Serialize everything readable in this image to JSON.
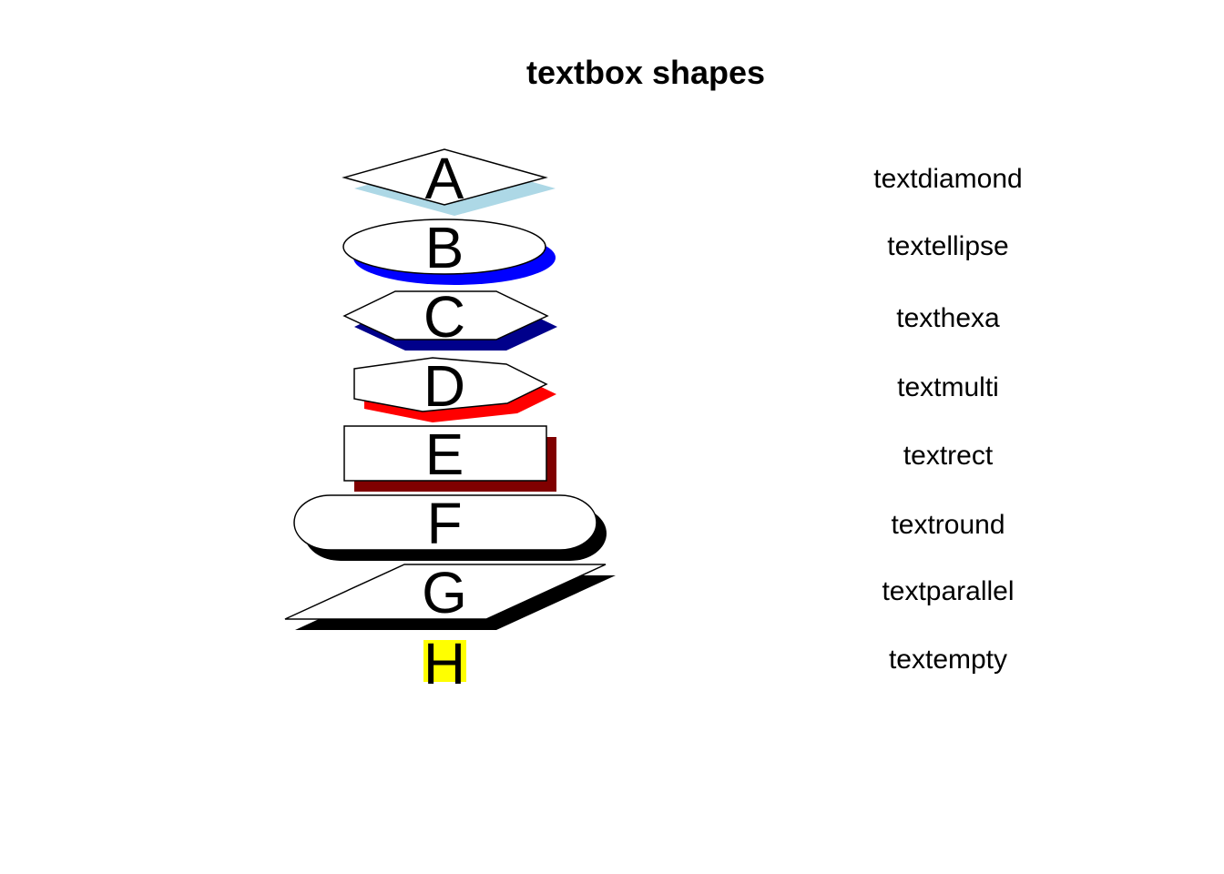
{
  "title": "textbox shapes",
  "shapes": [
    {
      "letter": "A",
      "label": "textdiamond",
      "shape": "diamond",
      "shadow_color": "#add8e6",
      "fill": "#ffffff"
    },
    {
      "letter": "B",
      "label": "textellipse",
      "shape": "ellipse",
      "shadow_color": "#0000ff",
      "fill": "#ffffff"
    },
    {
      "letter": "C",
      "label": "texthexa",
      "shape": "hexagon",
      "shadow_color": "#00008b",
      "fill": "#ffffff"
    },
    {
      "letter": "D",
      "label": "textmulti",
      "shape": "polygon",
      "shadow_color": "#ff0000",
      "fill": "#ffffff"
    },
    {
      "letter": "E",
      "label": "textrect",
      "shape": "rectangle",
      "shadow_color": "#800000",
      "fill": "#ffffff"
    },
    {
      "letter": "F",
      "label": "textround",
      "shape": "rounded-rectangle",
      "shadow_color": "#000000",
      "fill": "#ffffff"
    },
    {
      "letter": "G",
      "label": "textparallel",
      "shape": "parallelogram",
      "shadow_color": "#000000",
      "fill": "#ffffff"
    },
    {
      "letter": "H",
      "label": "textempty",
      "shape": "empty",
      "shadow_color": "",
      "fill": "#ffff00"
    }
  ]
}
